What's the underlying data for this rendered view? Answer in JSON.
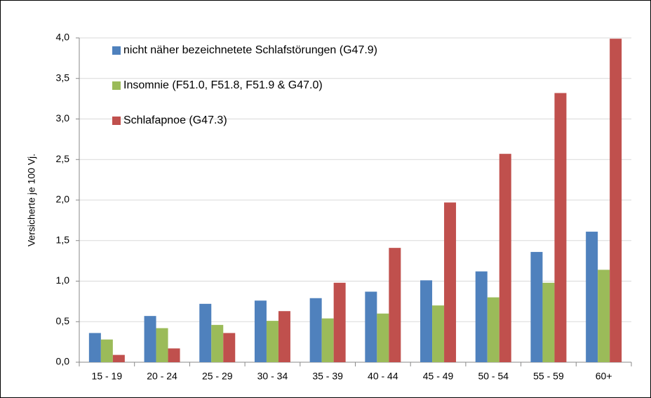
{
  "chart_data": {
    "type": "bar",
    "ylabel": "Versicherte  je 100 Vj.",
    "categories": [
      "15 - 19",
      "20 - 24",
      "25 - 29",
      "30 - 34",
      "35 - 39",
      "40 - 44",
      "45 - 49",
      "50 - 54",
      "55 - 59",
      "60+"
    ],
    "series": [
      {
        "name": "nicht näher bezeichnetete Schlafstörungen (G47.9)",
        "color": "#4f81bd",
        "values": [
          0.36,
          0.57,
          0.72,
          0.76,
          0.79,
          0.87,
          1.01,
          1.12,
          1.36,
          1.61
        ]
      },
      {
        "name": "Insomnie (F51.0, F51.8, F51.9 & G47.0)",
        "color": "#9bbb59",
        "values": [
          0.28,
          0.42,
          0.46,
          0.51,
          0.54,
          0.6,
          0.7,
          0.8,
          0.98,
          1.14
        ]
      },
      {
        "name": "Schlafapnoe (G47.3)",
        "color": "#c0504d",
        "values": [
          0.09,
          0.17,
          0.36,
          0.63,
          0.98,
          1.41,
          1.97,
          2.57,
          3.32,
          3.99
        ]
      }
    ],
    "ylim": [
      0,
      4
    ],
    "yticks": [
      {
        "value": 0,
        "label": "0,0"
      },
      {
        "value": 0.5,
        "label": "0,5"
      },
      {
        "value": 1,
        "label": "1,0"
      },
      {
        "value": 1.5,
        "label": "1,5"
      },
      {
        "value": 2,
        "label": "2,0"
      },
      {
        "value": 2.5,
        "label": "2,5"
      },
      {
        "value": 3,
        "label": "3,0"
      },
      {
        "value": 3.5,
        "label": "3,5"
      },
      {
        "value": 4,
        "label": "4,0"
      }
    ],
    "grid": true
  }
}
